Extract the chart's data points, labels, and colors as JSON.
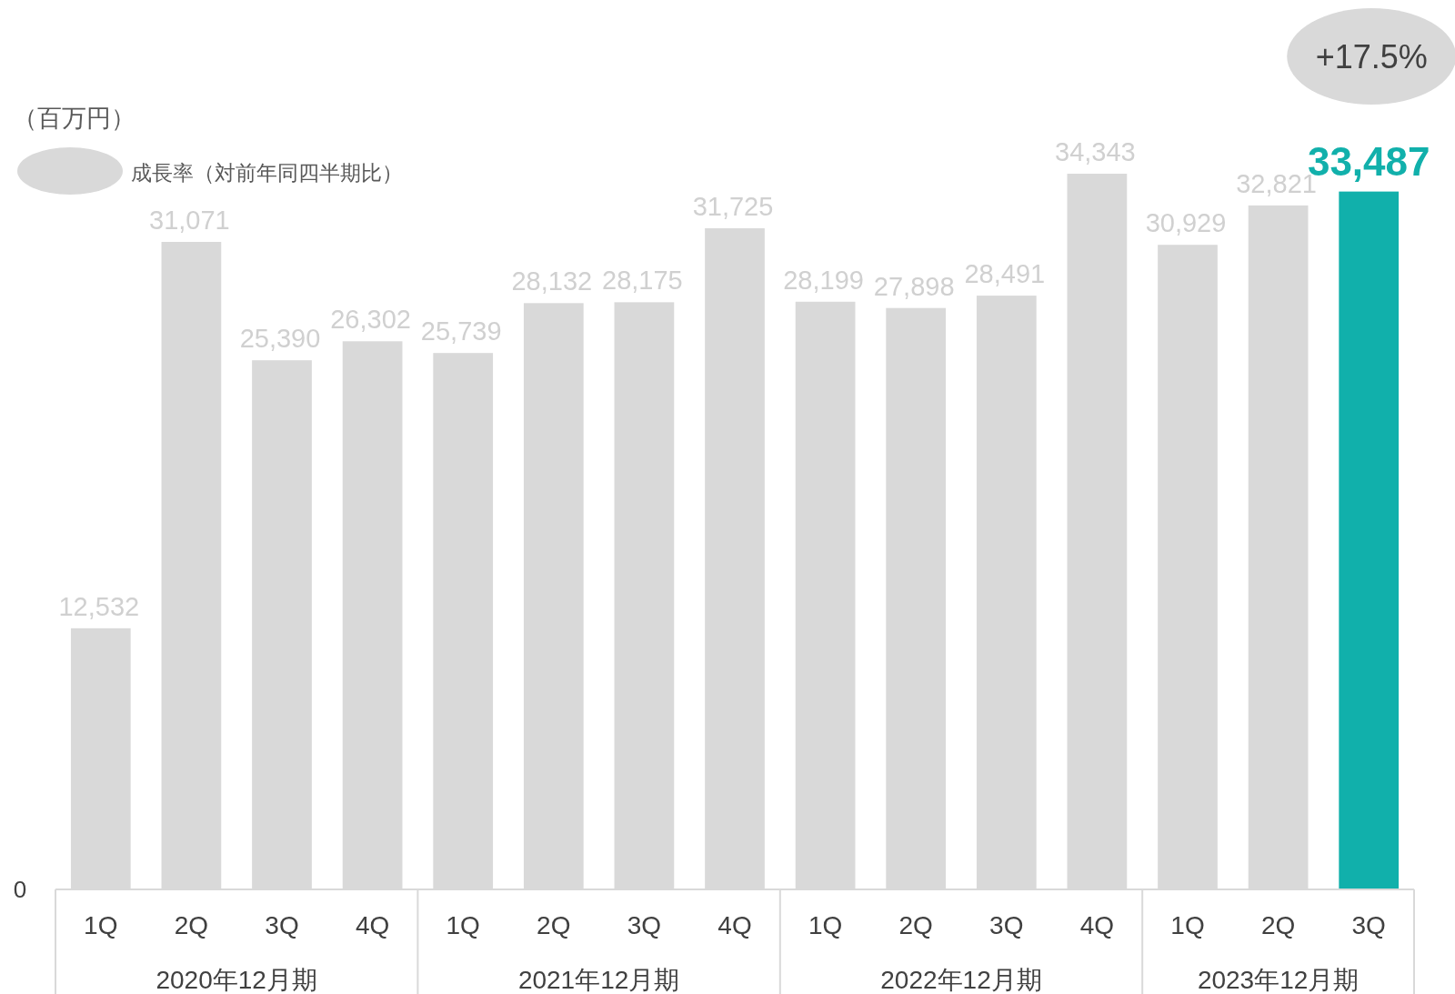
{
  "chart_data": {
    "type": "bar",
    "ylabel": "（百万円）",
    "categories": [
      "1Q",
      "2Q",
      "3Q",
      "4Q",
      "1Q",
      "2Q",
      "3Q",
      "4Q",
      "1Q",
      "2Q",
      "3Q",
      "4Q",
      "1Q",
      "2Q",
      "3Q"
    ],
    "values": [
      12532,
      31071,
      25390,
      26302,
      25739,
      28132,
      28175,
      31725,
      28199,
      27898,
      28491,
      34343,
      30929,
      32821,
      33487
    ],
    "value_labels": [
      "12,532",
      "31,071",
      "25,390",
      "26,302",
      "25,739",
      "28,132",
      "28,175",
      "31,725",
      "28,199",
      "27,898",
      "28,491",
      "34,343",
      "30,929",
      "32,821",
      "33,487"
    ],
    "colors": [
      "#d9d9d9",
      "#d9d9d9",
      "#d9d9d9",
      "#d9d9d9",
      "#d9d9d9",
      "#d9d9d9",
      "#d9d9d9",
      "#d9d9d9",
      "#d9d9d9",
      "#d9d9d9",
      "#d9d9d9",
      "#d9d9d9",
      "#d9d9d9",
      "#d9d9d9",
      "#11b0ab"
    ],
    "annotations": [
      "成長率（対前年同四半期比）",
      "+17.5%",
      "2020年12月期",
      "2021年12月期",
      "2022年12月期",
      "2023年12月期",
      "0"
    ]
  }
}
